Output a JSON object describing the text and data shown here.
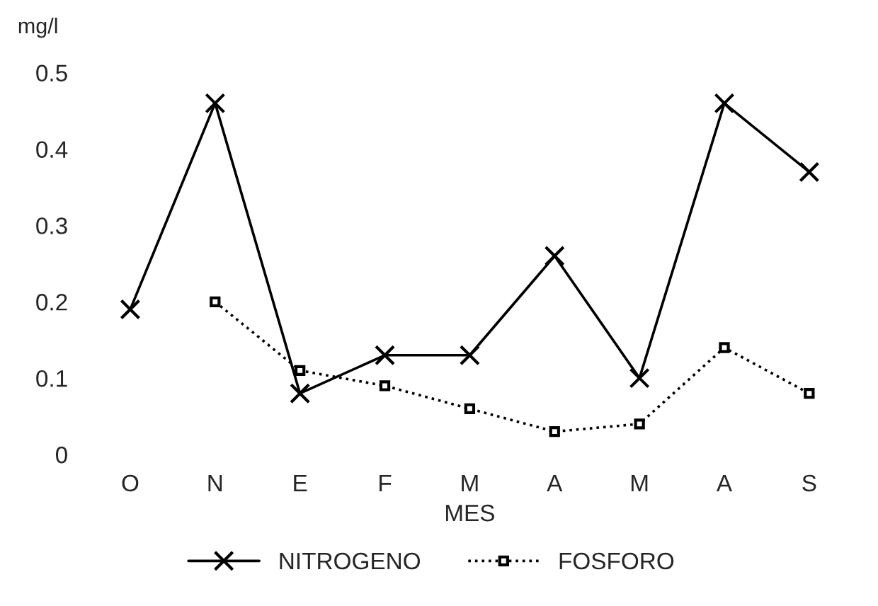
{
  "chart_data": {
    "type": "line",
    "ylabel": "mg/l",
    "xlabel": "MES",
    "categories": [
      "O",
      "N",
      "E",
      "F",
      "M",
      "A",
      "M",
      "A",
      "S"
    ],
    "series": [
      {
        "name": "NITROGENO",
        "color": "#000000",
        "marker": "cross",
        "line_style": "solid",
        "values": [
          0.19,
          0.46,
          0.08,
          0.13,
          0.13,
          0.26,
          0.1,
          0.46,
          0.37
        ]
      },
      {
        "name": "FOSFORO",
        "color": "#000000",
        "marker": "square",
        "line_style": "dotted",
        "values": [
          null,
          0.2,
          0.11,
          0.09,
          0.06,
          0.03,
          0.04,
          0.14,
          0.08
        ]
      }
    ],
    "ylim": [
      0,
      0.5
    ],
    "yticks": [
      0,
      0.1,
      0.2,
      0.3,
      0.4,
      0.5
    ],
    "legend": "bottom"
  }
}
